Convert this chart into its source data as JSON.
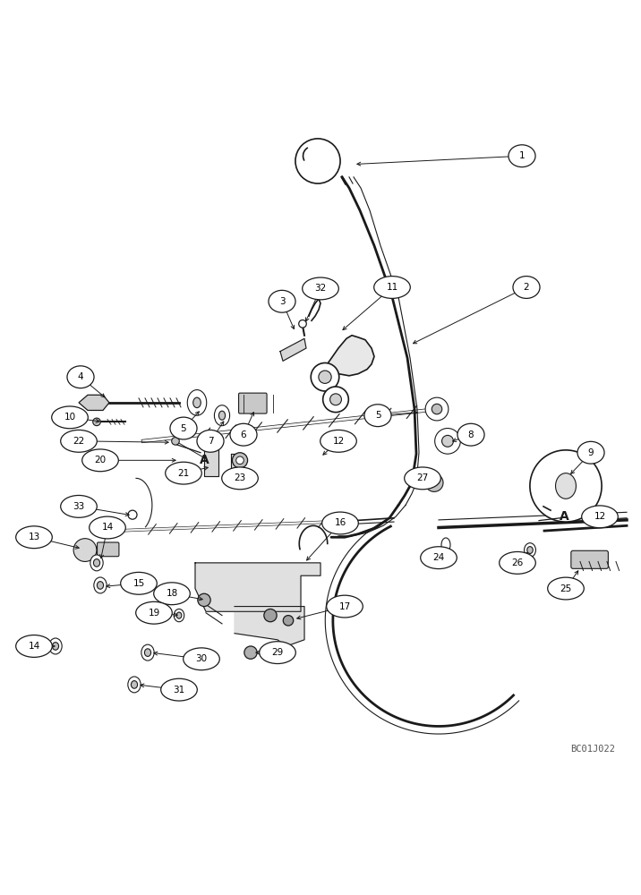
{
  "bg_color": "#ffffff",
  "line_color": "#1a1a1a",
  "watermark": "BC01J022",
  "fig_width": 7.16,
  "fig_height": 10.0,
  "dpi": 100
}
